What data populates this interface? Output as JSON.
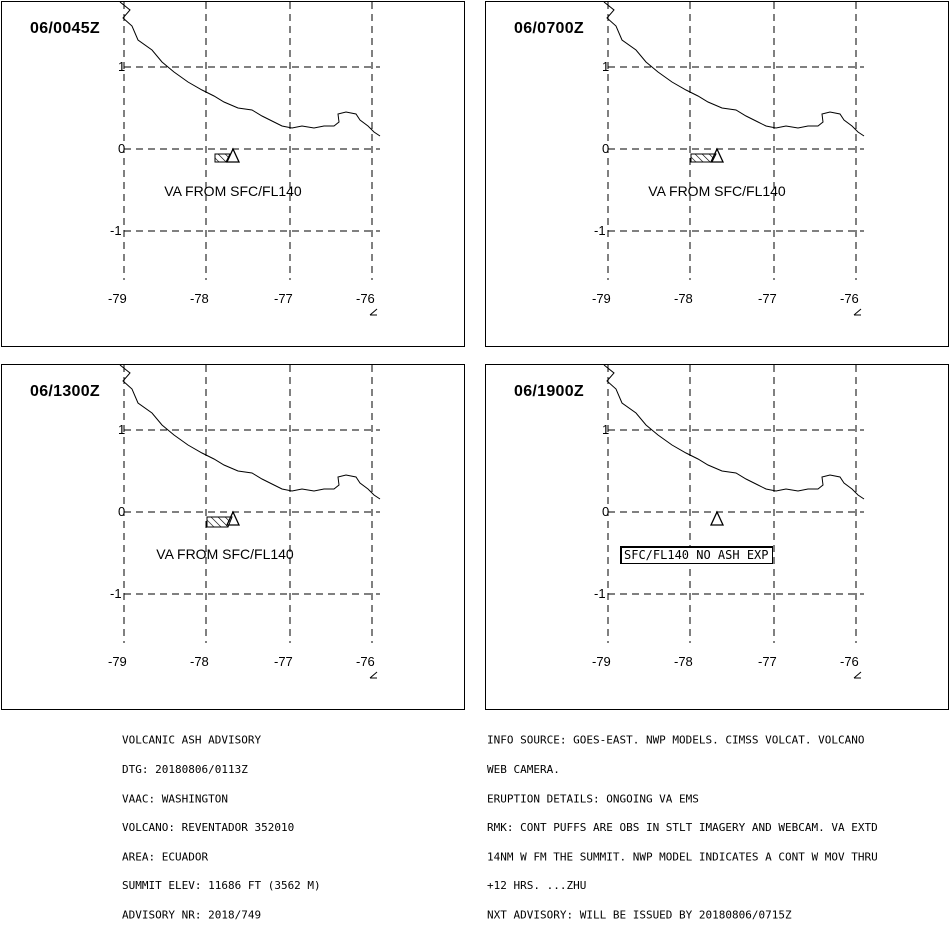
{
  "panels": [
    {
      "time": "06/0045Z",
      "label": "VA FROM SFC/FL140",
      "cloud": true,
      "no_ash": false
    },
    {
      "time": "06/0700Z",
      "label": "VA FROM SFC/FL140",
      "cloud": true,
      "no_ash": false
    },
    {
      "time": "06/1300Z",
      "label": "VA FROM SFC/FL140",
      "cloud": true,
      "no_ash": false
    },
    {
      "time": "06/1900Z",
      "label": "SFC/FL140 NO ASH EXP",
      "cloud": false,
      "no_ash": true
    }
  ],
  "map": {
    "lat_ticks": [
      "1",
      "0",
      "-1"
    ],
    "lon_ticks": [
      "-79",
      "-78",
      "-77",
      "-76"
    ],
    "volcano_symbol": "triangle-icon"
  },
  "advisory_left": [
    "VOLCANIC ASH ADVISORY",
    "DTG: 20180806/0113Z",
    "VAAC: WASHINGTON",
    "VOLCANO: REVENTADOR 352010",
    "AREA: ECUADOR",
    "SUMMIT ELEV: 11686 FT (3562 M)",
    "ADVISORY NR: 2018/749"
  ],
  "advisory_right": [
    "INFO SOURCE: GOES-EAST. NWP MODELS. CIMSS VOLCAT. VOLCANO",
    "WEB CAMERA.",
    "ERUPTION DETAILS: ONGOING VA EMS",
    "RMK: CONT PUFFS ARE OBS IN STLT IMAGERY AND WEBCAM. VA EXTD",
    "14NM W FM THE SUMMIT. NWP MODEL INDICATES A CONT W MOV THRU",
    "+12 HRS. ...ZHU",
    "NXT ADVISORY: WILL BE ISSUED BY 20180806/0715Z"
  ]
}
